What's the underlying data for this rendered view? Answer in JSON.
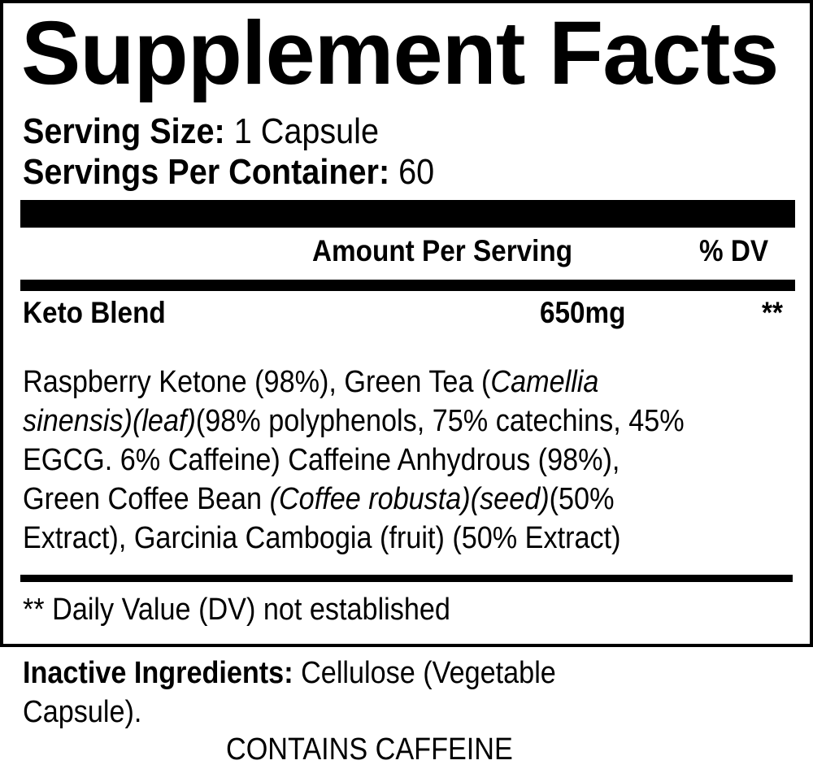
{
  "title": "Supplement Facts",
  "serving_size": {
    "label": "Serving Size:",
    "value": "1 Capsule"
  },
  "servings_per_container": {
    "label": "Servings Per Container:",
    "value": "60"
  },
  "header": {
    "amount": "Amount Per Serving",
    "dv": "% DV"
  },
  "blend": {
    "name": "Keto Blend",
    "amount": "650mg",
    "dv": "**"
  },
  "ingredients_lines": [
    [
      {
        "t": "Raspberry Ketone (98%), Green Tea (",
        "i": false
      },
      {
        "t": "Camellia",
        "i": true
      }
    ],
    [
      {
        "t": "sinensis)(leaf)",
        "i": true
      },
      {
        "t": "(98% polyphenols, 75% catechins, 45%",
        "i": false
      }
    ],
    [
      {
        "t": "EGCG. 6% Caffeine) Caffeine Anhydrous (98%),",
        "i": false
      }
    ],
    [
      {
        "t": "Green Coffee Bean ",
        "i": false
      },
      {
        "t": "(Coffee robusta)(seed)",
        "i": true
      },
      {
        "t": "(50%",
        "i": false
      }
    ],
    [
      {
        "t": "Extract), Garcinia Cambogia (fruit) (50% Extract)",
        "i": false
      }
    ]
  ],
  "footnote": "** Daily Value (DV) not established",
  "inactive": {
    "label": "Inactive Ingredients:",
    "value": "Cellulose (Vegetable",
    "value2": "Capsule)."
  },
  "warning": "CONTAINS CAFFEINE"
}
